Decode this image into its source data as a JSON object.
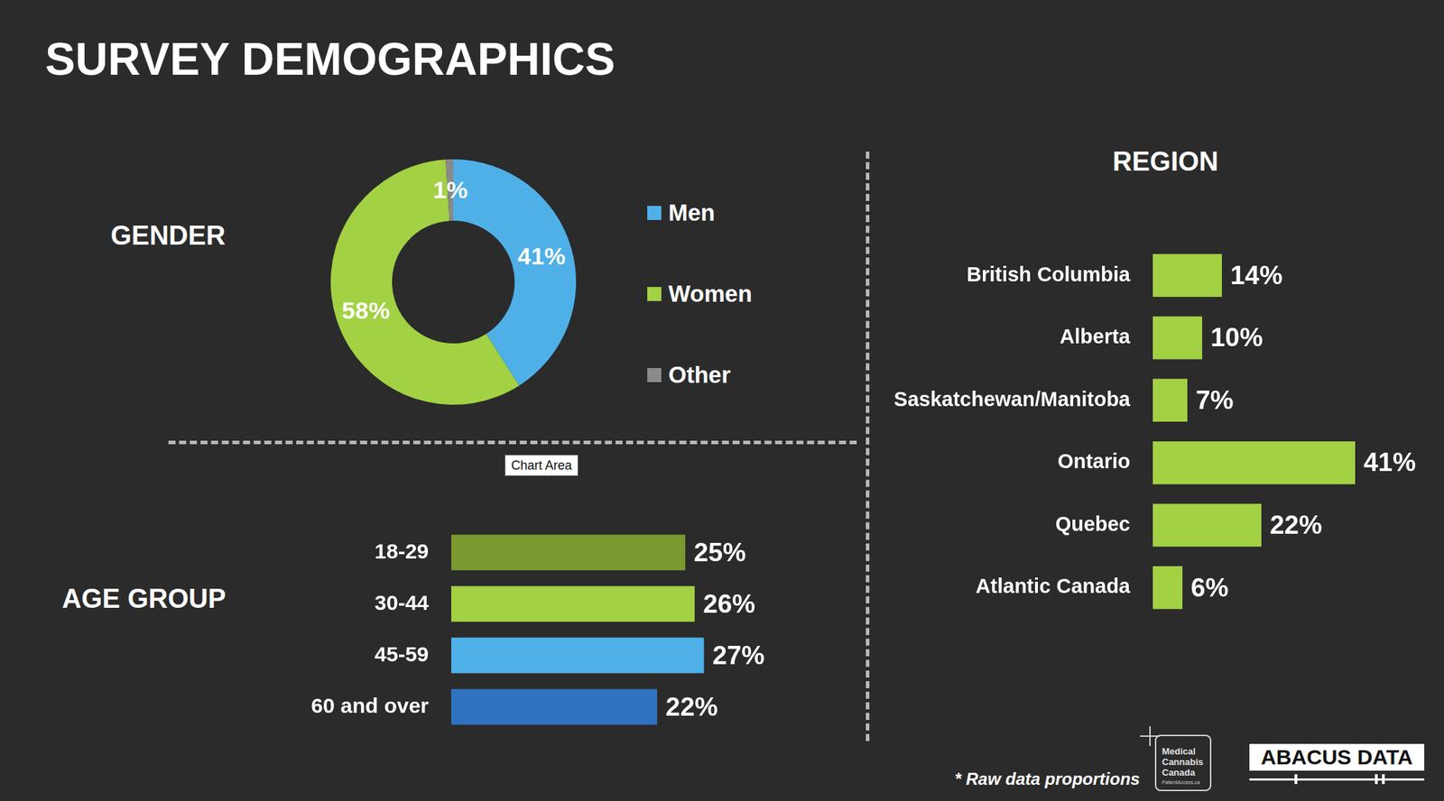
{
  "title": "SURVEY DEMOGRAPHICS",
  "footnote": "* Raw data proportions",
  "hover_tooltip": "Chart Area",
  "logos": [
    {
      "text": "Medical Cannabis Canada",
      "subtext": "PatientAccess.ca"
    },
    {
      "text": "ABACUS DATA"
    }
  ],
  "chart_data": [
    {
      "type": "doughnut",
      "title": "GENDER",
      "categories": [
        "Men",
        "Women",
        "Other"
      ],
      "values": [
        41,
        58,
        1
      ],
      "value_labels": [
        "41%",
        "58%",
        "1%"
      ],
      "colors": [
        "#4fb0e8",
        "#a3d144",
        "#8a8a8a"
      ],
      "legend": "right",
      "data_labels": true
    },
    {
      "type": "bar",
      "title": "AGE GROUP",
      "orientation": "horizontal",
      "categories": [
        "18-29",
        "30-44",
        "45-59",
        "60 and over"
      ],
      "values": [
        25,
        26,
        27,
        22
      ],
      "value_labels": [
        "25%",
        "26%",
        "27%",
        "22%"
      ],
      "colors": [
        "#7a9a2f",
        "#a3d144",
        "#4fb0e8",
        "#2f72bf"
      ],
      "xlim": [
        0,
        40
      ],
      "tick_labels": "y",
      "grid": false,
      "data_labels": true
    },
    {
      "type": "bar",
      "title": "REGION",
      "orientation": "horizontal",
      "categories": [
        "British Columbia",
        "Alberta",
        "Saskatchewan/Manitoba",
        "Ontario",
        "Quebec",
        "Atlantic Canada"
      ],
      "values": [
        14,
        10,
        7,
        41,
        22,
        6
      ],
      "value_labels": [
        "14%",
        "10%",
        "7%",
        "41%",
        "22%",
        "6%"
      ],
      "color": "#a3d144",
      "xlim": [
        0,
        50
      ],
      "tick_labels": "y",
      "grid": false,
      "data_labels": true
    }
  ]
}
